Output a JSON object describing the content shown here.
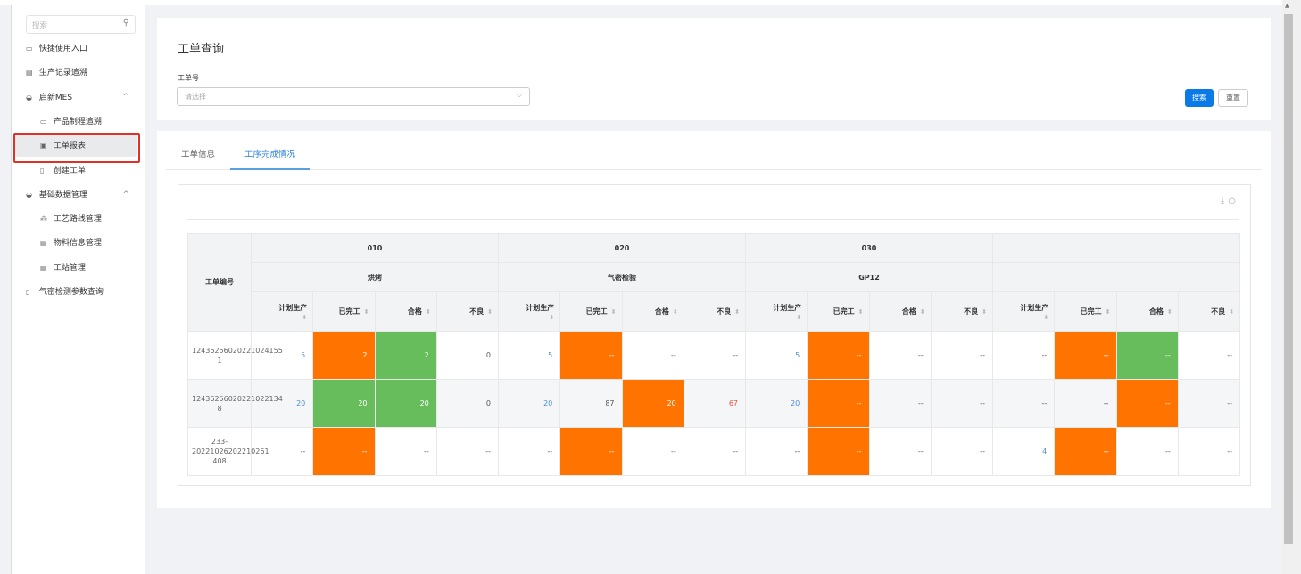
{
  "sidebar": {
    "search_placeholder": "搜索",
    "items": [
      {
        "label": "快捷使用入口",
        "icon": "calendar-icon"
      },
      {
        "label": "生产记录追溯",
        "icon": "report-icon"
      },
      {
        "label": "启新MES",
        "icon": "folder-icon",
        "expanded": true
      },
      {
        "label": "产品制程追溯",
        "icon": "calendar-icon"
      },
      {
        "label": "工单报表",
        "icon": "chart-icon",
        "active": true
      },
      {
        "label": "创建工单",
        "icon": "document-icon"
      },
      {
        "label": "基础数据管理",
        "icon": "folder-icon",
        "expanded": true
      },
      {
        "label": "工艺路线管理",
        "icon": "flow-icon"
      },
      {
        "label": "物料信息管理",
        "icon": "report-icon"
      },
      {
        "label": "工站管理",
        "icon": "report-icon"
      },
      {
        "label": "气密检测参数查询",
        "icon": "document-icon"
      }
    ]
  },
  "query": {
    "title": "工单查询",
    "field_label": "工单号",
    "placeholder": "请选择",
    "search_btn": "搜索",
    "reset_btn": "重置"
  },
  "tabs": [
    {
      "label": "工单信息"
    },
    {
      "label": "工序完成情况",
      "active": true
    }
  ],
  "colors": {
    "orange": "#ff7300",
    "green": "#67bd5c",
    "primary": "#0a7ae6"
  },
  "table": {
    "id_header": "工单编号",
    "groups": [
      {
        "code": "010",
        "name": "烘烤"
      },
      {
        "code": "020",
        "name": "气密检验"
      },
      {
        "code": "030",
        "name": "GP12"
      },
      {
        "code": "",
        "name": ""
      }
    ],
    "sub_headers": [
      "计划生产",
      "已完工",
      "合格",
      "不良"
    ],
    "rows": [
      {
        "id": "12436256020221024155 1",
        "values": [
          "5",
          "2",
          "2",
          "0",
          "5",
          "--",
          "--",
          "--",
          "5",
          "--",
          "--",
          "--",
          "--",
          "--",
          "--",
          "--"
        ],
        "colors": [
          "",
          "o",
          "g",
          "",
          "",
          "o",
          "",
          "",
          "",
          "o",
          "",
          "",
          "",
          "o",
          "g",
          ""
        ]
      },
      {
        "id": "12436256020221022134 8",
        "values": [
          "20",
          "20",
          "20",
          "0",
          "20",
          "87",
          "20",
          "67",
          "20",
          "--",
          "--",
          "--",
          "--",
          "--",
          "--",
          "--"
        ],
        "colors": [
          "",
          "g",
          "g",
          "",
          "",
          "",
          "o",
          "",
          "",
          "o",
          "",
          "",
          "",
          "",
          "o",
          ""
        ]
      },
      {
        "id": "233-20221026202210261 408",
        "values": [
          "--",
          "--",
          "--",
          "--",
          "--",
          "--",
          "--",
          "--",
          "--",
          "--",
          "--",
          "--",
          "4",
          "--",
          "--",
          "--"
        ],
        "colors": [
          "",
          "o",
          "",
          "",
          "",
          "o",
          "",
          "",
          "",
          "o",
          "",
          "",
          "",
          "o",
          "",
          ""
        ]
      }
    ]
  }
}
